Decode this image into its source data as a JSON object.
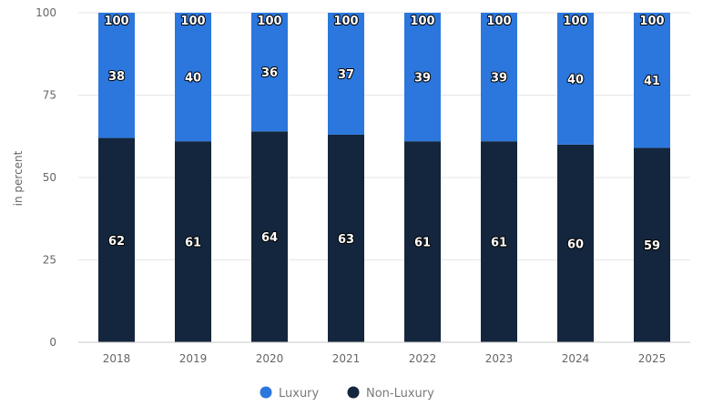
{
  "chart_data": {
    "type": "bar",
    "stacked": true,
    "categories": [
      "2018",
      "2019",
      "2020",
      "2021",
      "2022",
      "2023",
      "2024",
      "2025"
    ],
    "series": [
      {
        "name": "Non-Luxury",
        "color": "#13263d",
        "values": [
          62,
          61,
          64,
          63,
          61,
          61,
          60,
          59
        ]
      },
      {
        "name": "Luxury",
        "color": "#2b77dd",
        "values": [
          38,
          40,
          36,
          37,
          39,
          39,
          40,
          41
        ]
      }
    ],
    "totals": [
      100,
      100,
      100,
      100,
      100,
      100,
      100,
      100
    ],
    "title": "",
    "xlabel": "",
    "ylabel": "in percent",
    "ylim": [
      0,
      100
    ],
    "yticks": [
      0,
      25,
      50,
      75,
      100
    ],
    "grid": true,
    "legend": "bottom-center",
    "legend_entries": [
      {
        "label": "Luxury",
        "color": "#2b77dd"
      },
      {
        "label": "Non-Luxury",
        "color": "#13263d"
      }
    ]
  }
}
